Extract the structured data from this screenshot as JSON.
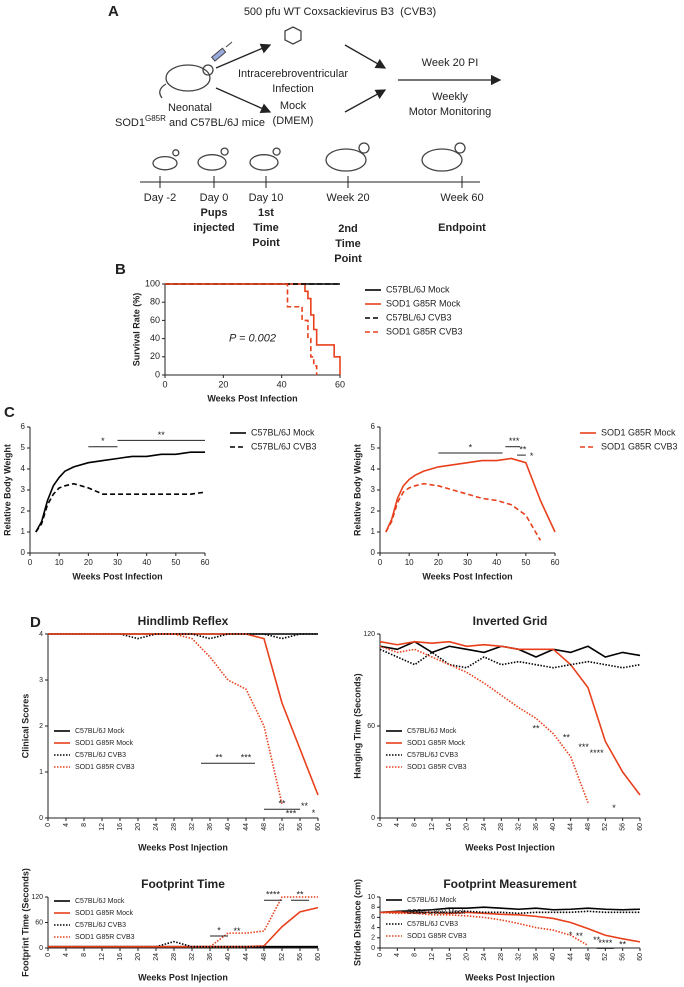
{
  "panel_a": {
    "letter": "A",
    "virus": "500 pfu WT Coxsackievirus B3  (CVB3)",
    "route_1": "Intracerebroventricular",
    "route_2": "Infection",
    "mock_1": "Mock",
    "mock_2": "(DMEM)",
    "mice_1": "Neonatal",
    "mice_2a": "SOD1",
    "mice_2b": "G85R",
    "mice_2c": " and C57BL/6J mice",
    "followup_1": "Week 20 PI",
    "followup_2": "Weekly",
    "followup_3": "Motor Monitoring",
    "timeline": [
      {
        "time": "Day -2",
        "event": []
      },
      {
        "time": "Day 0",
        "event": [
          "Pups",
          "injected"
        ]
      },
      {
        "time": "Day 10",
        "event": [
          "1st",
          "Time",
          "Point"
        ]
      },
      {
        "time": "Week 20",
        "event": [
          "2nd",
          "Time",
          "Point"
        ]
      },
      {
        "time": "Week 60",
        "event": [
          "Endpoint"
        ]
      }
    ]
  },
  "chart_data": [
    {
      "type": "line",
      "panel": "B",
      "step": true,
      "xlabel": "Weeks Post Infection",
      "ylabel": "Survival Rate (%)",
      "annotations": [
        "P = 0.002"
      ],
      "legend": "right",
      "x": [
        0,
        40,
        42,
        44,
        46,
        47,
        48,
        49,
        50,
        51,
        52,
        54,
        56,
        58,
        60
      ],
      "xlim": [
        0,
        60
      ],
      "xticks": [
        0,
        20,
        40,
        60
      ],
      "ylim": [
        0,
        100
      ],
      "yticks": [
        0,
        20,
        40,
        60,
        80,
        100
      ],
      "series": [
        {
          "name": "C57BL/6J Mock",
          "color": "#000000",
          "dash": "solid",
          "values": [
            100,
            100,
            100,
            100,
            100,
            100,
            100,
            100,
            100,
            100,
            100,
            100,
            100,
            100,
            100
          ]
        },
        {
          "name": "SOD1 G85R Mock",
          "color": "#e8401c",
          "dash": "solid",
          "values": [
            100,
            100,
            100,
            100,
            100,
            100,
            92,
            84,
            66,
            50,
            33,
            33,
            33,
            20,
            0
          ]
        },
        {
          "name": "C57BL/6J CVB3",
          "color": "#000000",
          "dash": "dashed",
          "values": [
            100,
            100,
            100,
            100,
            100,
            100,
            100,
            100,
            100,
            100,
            100,
            100,
            100,
            100,
            100
          ]
        },
        {
          "name": "SOD1 G85R CVB3",
          "color": "#e8401c",
          "dash": "dashed",
          "values": [
            100,
            100,
            75,
            75,
            75,
            60,
            60,
            40,
            20,
            10,
            0,
            null,
            null,
            null,
            null
          ]
        }
      ]
    },
    {
      "type": "line",
      "panel": "C",
      "xlabel": "Weeks Post Infection",
      "ylabel": "Relative Body Weight",
      "annotations": [
        "*",
        "**"
      ],
      "legend": "right",
      "x": [
        2,
        4,
        6,
        8,
        10,
        12,
        15,
        20,
        25,
        30,
        35,
        40,
        45,
        50,
        55,
        60
      ],
      "xlim": [
        0,
        60
      ],
      "xticks": [
        0,
        10,
        20,
        30,
        40,
        50,
        60
      ],
      "ylim": [
        0,
        6
      ],
      "yticks": [
        0,
        1,
        2,
        3,
        4,
        5,
        6
      ],
      "series": [
        {
          "name": "C57BL/6J Mock",
          "color": "#000000",
          "dash": "solid",
          "values": [
            1,
            1.5,
            2.5,
            3.2,
            3.6,
            3.9,
            4.1,
            4.3,
            4.4,
            4.5,
            4.6,
            4.6,
            4.7,
            4.7,
            4.8,
            4.8
          ]
        },
        {
          "name": "C57BL/6J CVB3",
          "color": "#000000",
          "dash": "dashed",
          "values": [
            1,
            1.4,
            2.3,
            2.8,
            3.1,
            3.2,
            3.3,
            3.1,
            2.8,
            2.8,
            2.8,
            2.8,
            2.8,
            2.8,
            2.8,
            2.9
          ]
        }
      ]
    },
    {
      "type": "line",
      "xlabel": "Weeks Post Infection",
      "ylabel": "Relative Body Weight",
      "annotations": [
        "*",
        "***",
        "**",
        "*"
      ],
      "legend": "right",
      "x": [
        2,
        4,
        6,
        8,
        10,
        12,
        15,
        20,
        25,
        30,
        35,
        40,
        45,
        50,
        55,
        60
      ],
      "xlim": [
        0,
        60
      ],
      "xticks": [
        0,
        10,
        20,
        30,
        40,
        50,
        60
      ],
      "ylim": [
        0,
        6
      ],
      "yticks": [
        0,
        1,
        2,
        3,
        4,
        5,
        6
      ],
      "series": [
        {
          "name": "SOD1 G85R Mock",
          "color": "#e8401c",
          "dash": "solid",
          "values": [
            1,
            1.6,
            2.6,
            3.2,
            3.5,
            3.7,
            3.9,
            4.1,
            4.2,
            4.3,
            4.4,
            4.4,
            4.5,
            4.3,
            2.5,
            1.0
          ]
        },
        {
          "name": "SOD1 G85R CVB3",
          "color": "#e8401c",
          "dash": "dashed",
          "values": [
            1,
            1.5,
            2.4,
            2.9,
            3.1,
            3.2,
            3.3,
            3.2,
            3.0,
            2.8,
            2.6,
            2.5,
            2.3,
            1.8,
            0.6,
            null
          ]
        }
      ]
    },
    {
      "type": "line",
      "panel": "D",
      "title": "Hindlimb Reflex",
      "xlabel": "Weeks Post Injection",
      "ylabel": "Clinical Scores",
      "annotations": [
        "**",
        "***",
        "**",
        "***",
        "**",
        "*"
      ],
      "legend": "center-left",
      "xtick_rotation": 90,
      "x": [
        0,
        4,
        8,
        12,
        16,
        20,
        24,
        28,
        32,
        36,
        40,
        44,
        48,
        52,
        56,
        60
      ],
      "xlim": [
        0,
        60
      ],
      "xticks": [
        0,
        4,
        8,
        12,
        16,
        20,
        24,
        28,
        32,
        36,
        40,
        44,
        48,
        52,
        56,
        60
      ],
      "ylim": [
        0,
        4
      ],
      "yticks": [
        0,
        1,
        2,
        3,
        4
      ],
      "series": [
        {
          "name": "C57BL/6J Mock",
          "color": "#000000",
          "dash": "solid",
          "values": [
            4,
            4,
            4,
            4,
            4,
            4,
            4,
            4,
            4,
            4,
            4,
            4,
            4,
            4,
            4,
            4
          ]
        },
        {
          "name": "SOD1 G85R Mock",
          "color": "#e8401c",
          "dash": "solid",
          "values": [
            4,
            4,
            4,
            4,
            4,
            4,
            4,
            4,
            4,
            4,
            4,
            4,
            3.9,
            2.5,
            1.5,
            0.5
          ]
        },
        {
          "name": "C57BL/6J CVB3",
          "color": "#000000",
          "dash": "dotted",
          "values": [
            4,
            4,
            4,
            4,
            4,
            3.9,
            4,
            4,
            4,
            3.9,
            4,
            4,
            4,
            3.9,
            4,
            4
          ]
        },
        {
          "name": "SOD1 G85R CVB3",
          "color": "#e8401c",
          "dash": "dotted",
          "values": [
            4,
            4,
            4,
            4,
            4,
            4,
            4,
            4,
            3.9,
            3.5,
            3.0,
            2.8,
            2.0,
            0.3,
            null,
            null
          ]
        }
      ]
    },
    {
      "type": "line",
      "title": "Inverted Grid",
      "xlabel": "Weeks Post Injection",
      "ylabel": "Hanging Time (Seconds)",
      "annotations": [
        "**",
        "**",
        "***",
        "****",
        "*"
      ],
      "legend": "center-left",
      "xtick_rotation": 90,
      "x": [
        0,
        4,
        8,
        12,
        16,
        20,
        24,
        28,
        32,
        36,
        40,
        44,
        48,
        52,
        56,
        60
      ],
      "xlim": [
        0,
        60
      ],
      "xticks": [
        0,
        4,
        8,
        12,
        16,
        20,
        24,
        28,
        32,
        36,
        40,
        44,
        48,
        52,
        56,
        60
      ],
      "ylim": [
        0,
        120
      ],
      "yticks": [
        0,
        60,
        120
      ],
      "series": [
        {
          "name": "C57BL/6J Mock",
          "color": "#000000",
          "dash": "solid",
          "values": [
            112,
            110,
            115,
            108,
            112,
            110,
            108,
            112,
            110,
            105,
            110,
            108,
            112,
            105,
            108,
            106
          ]
        },
        {
          "name": "SOD1 G85R Mock",
          "color": "#e8401c",
          "dash": "solid",
          "values": [
            115,
            113,
            115,
            114,
            115,
            112,
            113,
            112,
            110,
            110,
            110,
            100,
            85,
            50,
            30,
            15
          ]
        },
        {
          "name": "C57BL/6J CVB3",
          "color": "#000000",
          "dash": "dotted",
          "values": [
            110,
            105,
            100,
            108,
            100,
            98,
            105,
            100,
            102,
            100,
            98,
            100,
            102,
            100,
            98,
            100
          ]
        },
        {
          "name": "SOD1 G85R CVB3",
          "color": "#e8401c",
          "dash": "dotted",
          "values": [
            112,
            108,
            110,
            105,
            100,
            95,
            88,
            80,
            72,
            65,
            55,
            40,
            10,
            null,
            null,
            null
          ]
        }
      ]
    },
    {
      "type": "line",
      "title": "Footprint Time",
      "xlabel": "Weeks Post Injection",
      "ylabel": "Footprint Time (Seconds)",
      "annotations": [
        "*",
        "**",
        "****",
        "**"
      ],
      "legend": "upper-left",
      "xtick_rotation": 90,
      "x": [
        0,
        4,
        8,
        12,
        16,
        20,
        24,
        28,
        32,
        36,
        40,
        44,
        48,
        52,
        56,
        60
      ],
      "xlim": [
        0,
        60
      ],
      "xticks": [
        0,
        4,
        8,
        12,
        16,
        20,
        24,
        28,
        32,
        36,
        40,
        44,
        48,
        52,
        56,
        60
      ],
      "ylim": [
        0,
        120
      ],
      "yticks": [
        0,
        60,
        120
      ],
      "series": [
        {
          "name": "C57BL/6J Mock",
          "color": "#000000",
          "dash": "solid",
          "values": [
            3,
            3,
            3,
            3,
            3,
            3,
            3,
            3,
            3,
            3,
            3,
            3,
            3,
            3,
            3,
            3
          ]
        },
        {
          "name": "SOD1 G85R Mock",
          "color": "#e8401c",
          "dash": "solid",
          "values": [
            3,
            3,
            3,
            3,
            3,
            3,
            3,
            3,
            3,
            3,
            3,
            3,
            5,
            50,
            85,
            95
          ]
        },
        {
          "name": "C57BL/6J CVB3",
          "color": "#000000",
          "dash": "dotted",
          "values": [
            3,
            3,
            3,
            3,
            3,
            3,
            3,
            15,
            3,
            3,
            3,
            3,
            3,
            3,
            3,
            3
          ]
        },
        {
          "name": "SOD1 G85R CVB3",
          "color": "#e8401c",
          "dash": "dotted",
          "values": [
            3,
            3,
            3,
            3,
            3,
            3,
            3,
            3,
            3,
            3,
            35,
            35,
            40,
            120,
            120,
            120
          ]
        }
      ]
    },
    {
      "type": "line",
      "title": "Footprint Measurement",
      "xlabel": "Weeks Post Injection",
      "ylabel": "Stride Distance (cm)",
      "annotations": [
        "*",
        "**",
        "**",
        "****",
        "**"
      ],
      "legend": "lower-left",
      "xtick_rotation": 90,
      "x": [
        0,
        4,
        8,
        12,
        16,
        20,
        24,
        28,
        32,
        36,
        40,
        44,
        48,
        52,
        56,
        60
      ],
      "xlim": [
        0,
        60
      ],
      "xticks": [
        0,
        4,
        8,
        12,
        16,
        20,
        24,
        28,
        32,
        36,
        40,
        44,
        48,
        52,
        56,
        60
      ],
      "ylim": [
        0,
        10
      ],
      "yticks": [
        0,
        2,
        4,
        6,
        8,
        10
      ],
      "series": [
        {
          "name": "C57BL/6J Mock",
          "color": "#000000",
          "dash": "solid",
          "values": [
            7,
            7.2,
            7.3,
            7.5,
            7.8,
            7.8,
            8,
            7.8,
            7.6,
            7.8,
            7.5,
            7.6,
            7.8,
            7.6,
            7.5,
            7.6
          ]
        },
        {
          "name": "SOD1 G85R Mock",
          "color": "#e8401c",
          "dash": "solid",
          "values": [
            7,
            7,
            6.9,
            7,
            6.8,
            7,
            6.8,
            6.6,
            6.5,
            6.2,
            5.8,
            5.0,
            3.8,
            2.5,
            1.8,
            1.2
          ]
        },
        {
          "name": "C57BL/6J CVB3",
          "color": "#000000",
          "dash": "dotted",
          "values": [
            7,
            6.8,
            7,
            7,
            7,
            7.2,
            7,
            7,
            6.8,
            7,
            7,
            7,
            7.2,
            7,
            7,
            7
          ]
        },
        {
          "name": "SOD1 G85R CVB3",
          "color": "#e8401c",
          "dash": "dotted",
          "values": [
            7,
            6.8,
            6.8,
            6.5,
            6.5,
            6.3,
            6,
            5.5,
            4.8,
            4,
            3.5,
            2.5,
            0.5,
            null,
            null,
            null
          ]
        }
      ]
    }
  ]
}
